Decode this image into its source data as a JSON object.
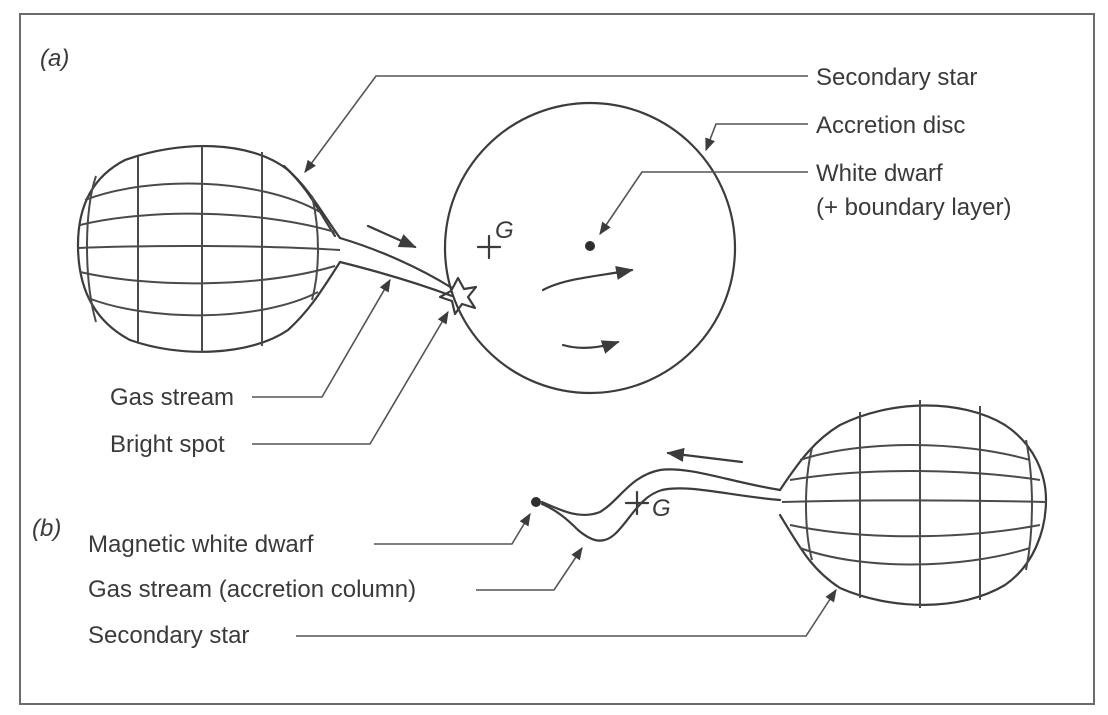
{
  "panels": {
    "a": {
      "tag": "(a)",
      "labels": {
        "secondary_star": "Secondary star",
        "accretion_disc": "Accretion disc",
        "white_dwarf": "White dwarf",
        "boundary_layer": "(+ boundary layer)",
        "gas_stream": "Gas stream",
        "bright_spot": "Bright spot",
        "centre_of_mass": "G"
      }
    },
    "b": {
      "tag": "(b)",
      "labels": {
        "magnetic_white_dwarf": "Magnetic white dwarf",
        "gas_stream": "Gas stream (accretion column)",
        "secondary_star": "Secondary star",
        "centre_of_mass": "G"
      }
    }
  },
  "colors": {
    "ink": "#3c3c3c",
    "frame": "#6b6b6b",
    "background": "#ffffff"
  }
}
